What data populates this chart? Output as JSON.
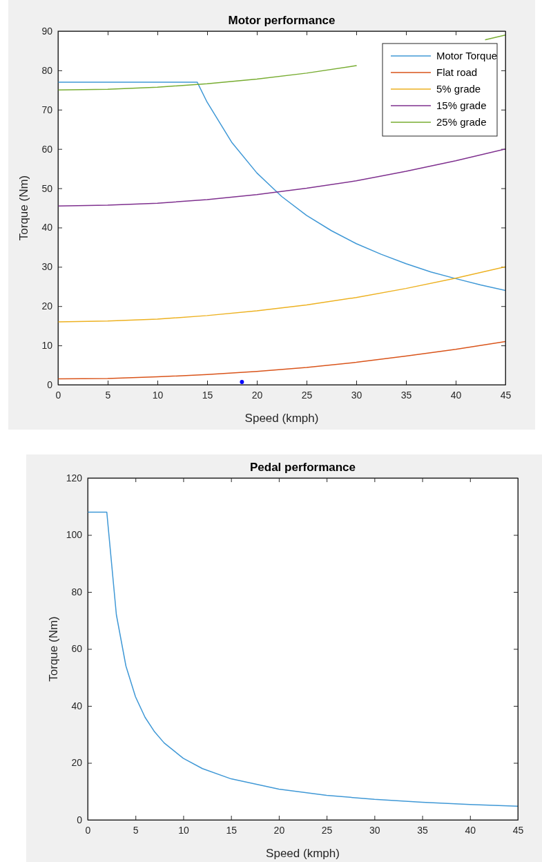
{
  "chart_data": [
    {
      "type": "line",
      "title": "Motor performance",
      "xlabel": "Speed (kmph)",
      "ylabel": "Torque (Nm)",
      "xlim": [
        0,
        45
      ],
      "ylim": [
        0,
        90
      ],
      "xticks": [
        0,
        5,
        10,
        15,
        20,
        25,
        30,
        35,
        40,
        45
      ],
      "yticks": [
        0,
        10,
        20,
        30,
        40,
        50,
        60,
        70,
        80,
        90
      ],
      "grid": false,
      "legend": "top right",
      "marker": "none",
      "line_style": "solid",
      "series": [
        {
          "name": "Motor Torque",
          "color": "#3f98d6",
          "x": [
            0,
            14,
            15,
            17.5,
            20,
            22.5,
            25,
            27.5,
            30,
            32.5,
            35,
            37.5,
            40,
            42.5,
            45
          ],
          "values": [
            77,
            77,
            71.9,
            61.6,
            53.9,
            47.9,
            43.1,
            39.2,
            35.9,
            33.2,
            30.8,
            28.7,
            27.0,
            25.4,
            24.0
          ]
        },
        {
          "name": "Flat road",
          "color": "#d95319",
          "x": [
            0,
            5,
            10,
            15,
            20,
            25,
            30,
            35,
            40,
            45
          ],
          "values": [
            1.5,
            1.6,
            2.0,
            2.6,
            3.4,
            4.4,
            5.7,
            7.3,
            9.0,
            11.0
          ]
        },
        {
          "name": "5% grade",
          "color": "#edb120",
          "x": [
            0,
            5,
            10,
            15,
            20,
            25,
            30,
            35,
            40,
            45
          ],
          "values": [
            16,
            16.2,
            16.7,
            17.6,
            18.8,
            20.3,
            22.2,
            24.5,
            27.1,
            30
          ]
        },
        {
          "name": "15% grade",
          "color": "#7e2f8e",
          "x": [
            0,
            5,
            10,
            15,
            20,
            25,
            30,
            35,
            40,
            45
          ],
          "values": [
            45.5,
            45.7,
            46.2,
            47.1,
            48.4,
            50.0,
            51.9,
            54.3,
            57.0,
            60
          ]
        },
        {
          "name": "25% grade",
          "color": "#77ac30",
          "x": [
            0,
            5,
            10,
            15,
            20,
            25,
            30,
            35,
            40,
            43,
            45
          ],
          "values": [
            75,
            75.2,
            75.7,
            76.6,
            77.8,
            79.3,
            81.2,
            null,
            null,
            87.8,
            89
          ]
        },
        {
          "type": "scatter",
          "marker": "circle",
          "color": "#0000ff",
          "x": [
            18.5
          ],
          "values": [
            0.7
          ]
        }
      ]
    },
    {
      "type": "line",
      "title": "Pedal performance",
      "xlabel": "Speed (kmph)",
      "ylabel": "Torque (Nm)",
      "xlim": [
        0,
        45
      ],
      "ylim": [
        0,
        120
      ],
      "xticks": [
        0,
        5,
        10,
        15,
        20,
        25,
        30,
        35,
        40,
        45
      ],
      "yticks": [
        0,
        20,
        40,
        60,
        80,
        100,
        120
      ],
      "grid": false,
      "legend": false,
      "marker": "none",
      "line_style": "solid",
      "series": [
        {
          "color": "#3f98d6",
          "x": [
            0,
            2,
            3,
            4,
            5,
            6,
            7,
            8,
            10,
            12,
            15,
            20,
            25,
            30,
            35,
            40,
            45
          ],
          "values": [
            108,
            108,
            72,
            54,
            43.2,
            36,
            30.9,
            27,
            21.6,
            18,
            14.4,
            10.8,
            8.6,
            7.2,
            6.2,
            5.4,
            4.8
          ]
        }
      ]
    }
  ]
}
